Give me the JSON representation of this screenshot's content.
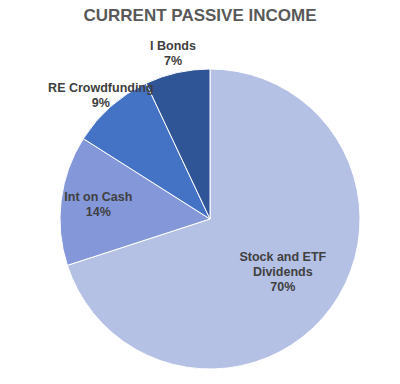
{
  "chart_data": {
    "type": "pie",
    "title": "CURRENT PASSIVE INCOME",
    "categories": [
      "Stock and ETF Dividends",
      "Int on Cash",
      "RE Crowdfunding",
      "I Bonds"
    ],
    "values": [
      70,
      14,
      9,
      7
    ],
    "value_labels": [
      "70%",
      "14%",
      "9%",
      "7%"
    ],
    "colors": [
      "#b4c0e4",
      "#8497d9",
      "#4472c4",
      "#2f5597"
    ],
    "data_labels": true
  }
}
